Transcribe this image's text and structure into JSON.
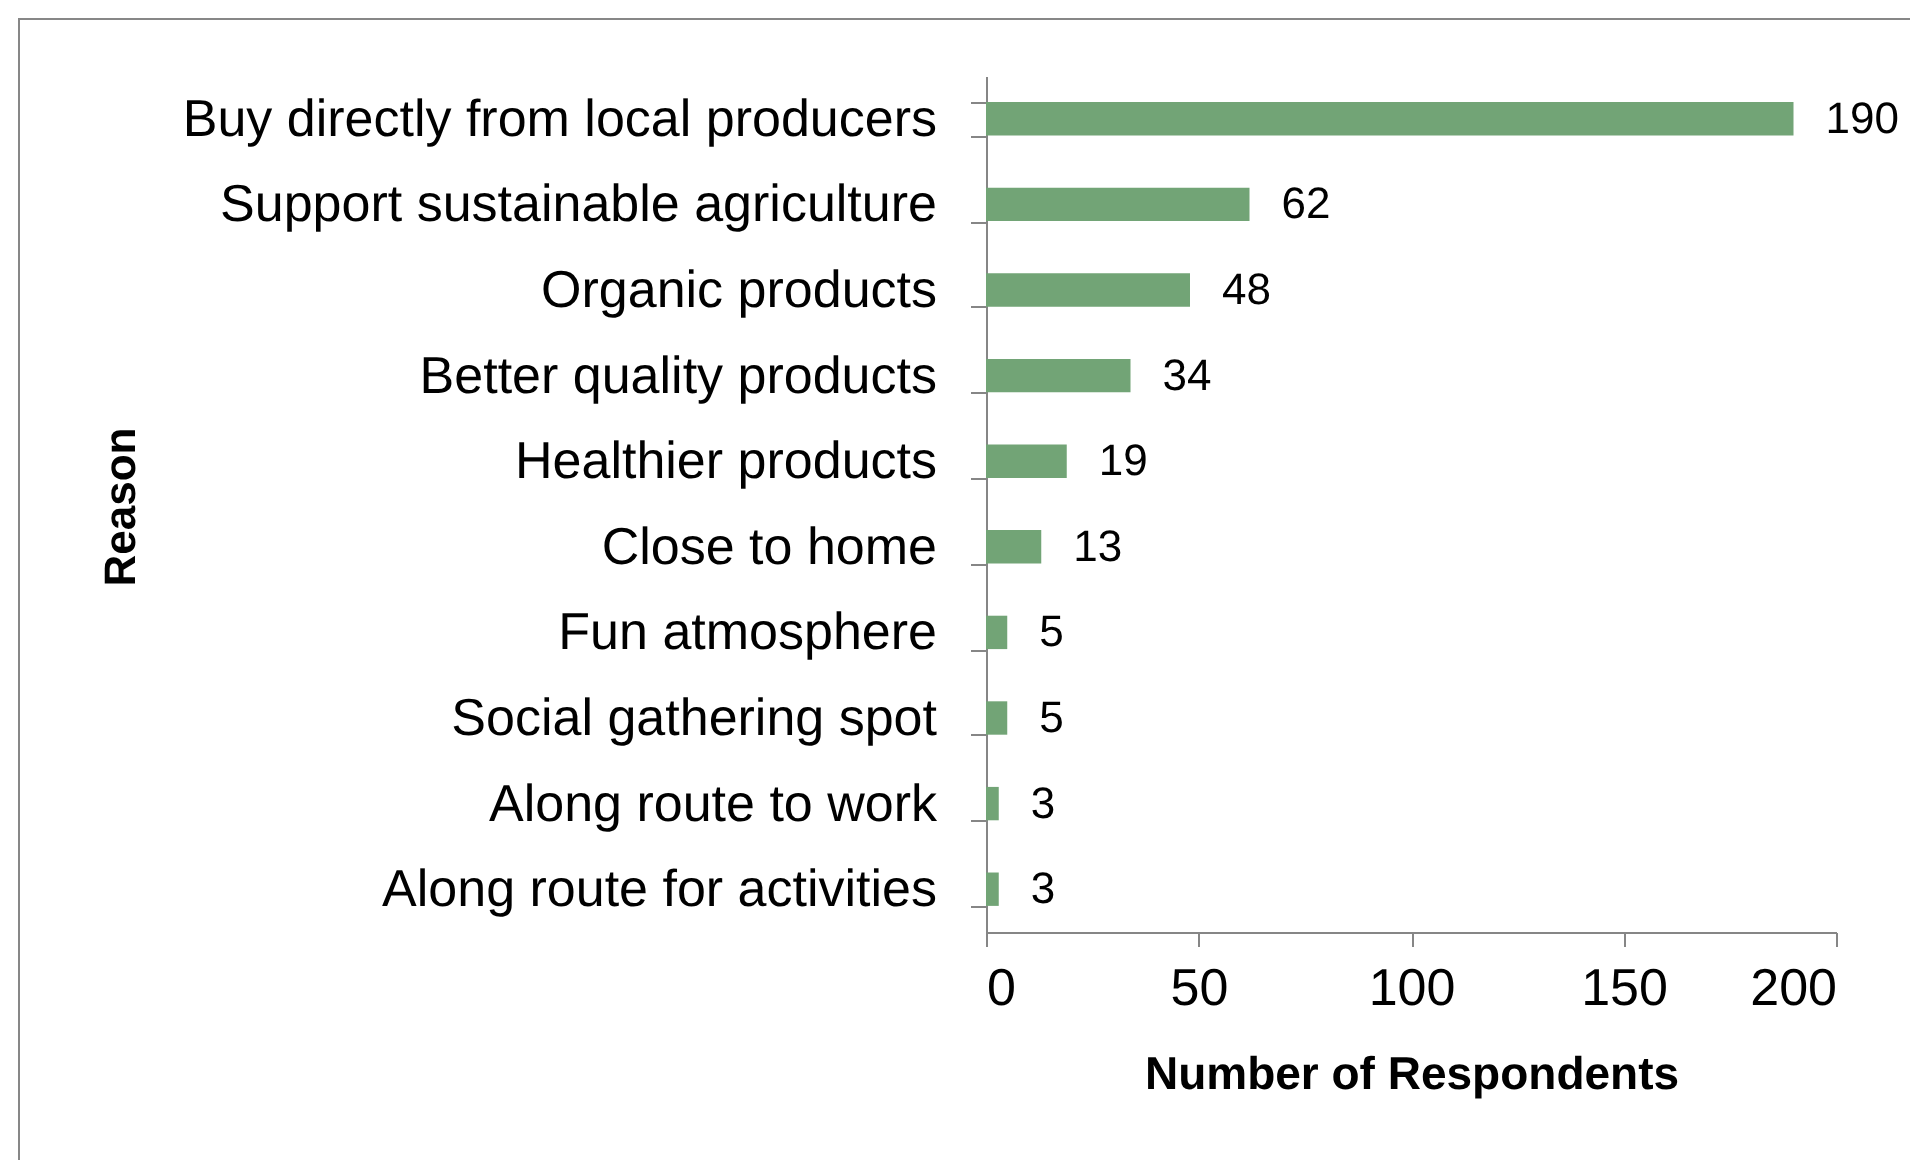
{
  "chart_data": {
    "type": "bar",
    "orientation": "horizontal",
    "xlabel": "Number of Respondents",
    "ylabel": "Reason",
    "categories": [
      "Buy directly from local producers",
      "Support sustainable agriculture",
      "Organic products",
      "Better quality products",
      "Healthier products",
      "Close to home",
      "Fun atmosphere",
      "Social gathering spot",
      "Along route to work",
      "Along route for activities"
    ],
    "values": [
      190,
      62,
      48,
      34,
      19,
      13,
      5,
      5,
      3,
      3
    ],
    "color": "#72a476",
    "xlim": [
      0,
      200
    ],
    "xticks": [
      0,
      50,
      100,
      150,
      200
    ],
    "data_labels": true,
    "grid": false
  }
}
